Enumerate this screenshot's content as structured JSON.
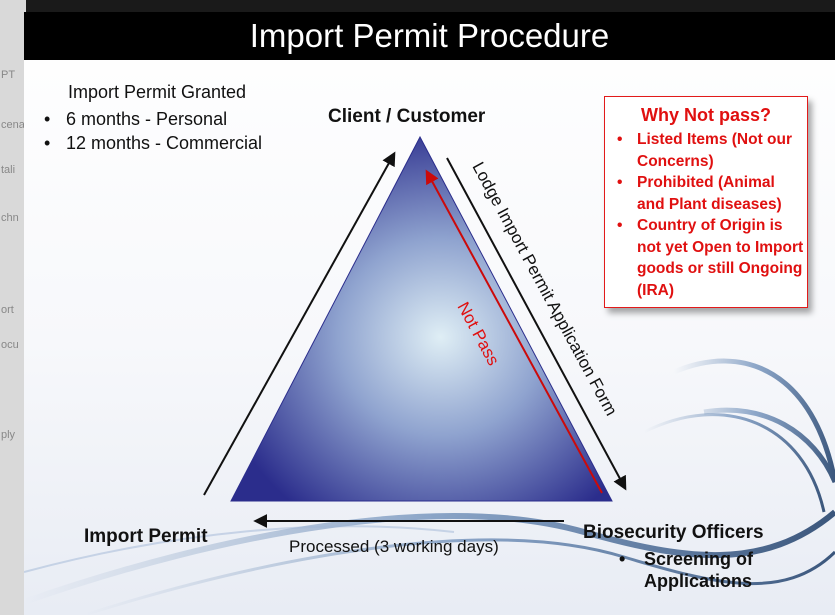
{
  "edge_strip": [
    "PT",
    "cena",
    "tali",
    "chn",
    "ort",
    "ocu",
    "ply"
  ],
  "title": "Import Permit Procedure",
  "granted": {
    "heading": "Import Permit Granted",
    "items": [
      "6 months - Personal",
      "12 months - Commercial"
    ]
  },
  "nodes": {
    "top": "Client / Customer",
    "left": "Import Permit",
    "right": "Biosecurity Officers",
    "right_sub": "Screening of Applications"
  },
  "edges": {
    "lodge": "Lodge Import Permit Application Form",
    "not_pass": "Not Pass",
    "processed": "Processed (3 working days)"
  },
  "why_not": {
    "title": "Why Not pass?",
    "items": [
      "Listed Items (Not our Concerns)",
      "Prohibited (Animal and Plant diseases)",
      "Country of Origin is not yet Open to Import goods or still Ongoing (IRA)"
    ]
  },
  "colors": {
    "title_bar": "#000000",
    "triangle_center": "#dfeef5",
    "triangle_edge": "#2b2d8c",
    "not_pass": "#cc0a0a",
    "why_box": "#e21a1a"
  }
}
